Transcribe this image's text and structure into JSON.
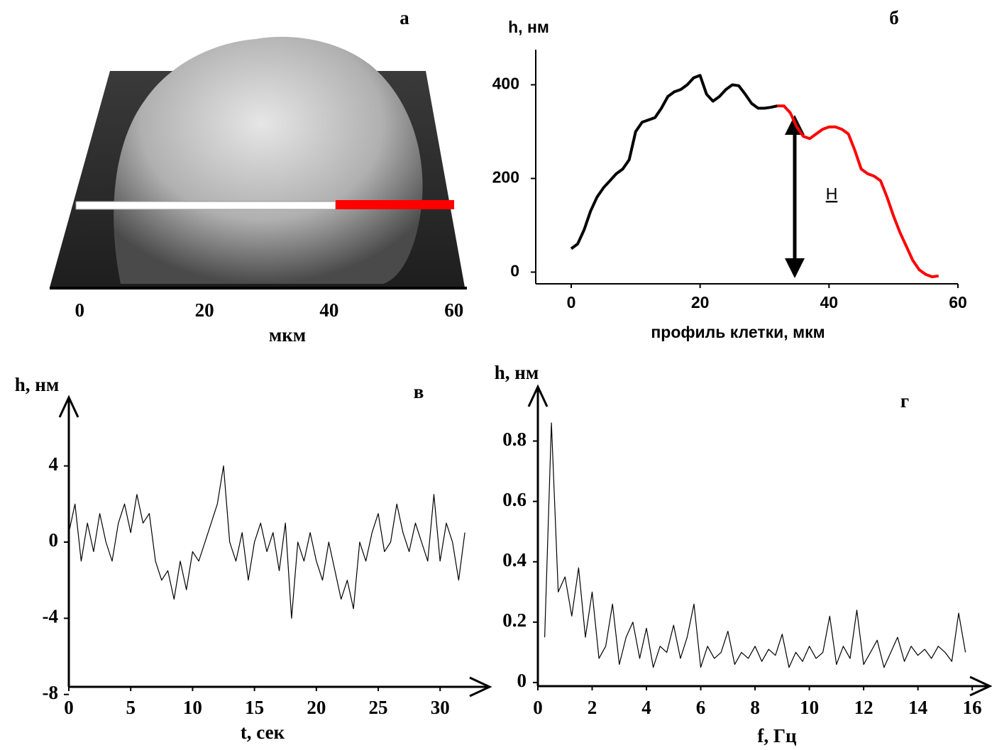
{
  "chart_data": [
    {
      "type": "image",
      "label": "а",
      "xlabel": "мкм",
      "xlim": [
        -4.8,
        62.3
      ],
      "xticks": [
        0,
        20,
        40,
        60
      ]
    },
    {
      "type": "line",
      "label": "б",
      "ylabel": "h, нм",
      "xlabel": "профиль клетки, мкм",
      "annotation": "H",
      "xlim": [
        -5.5,
        60
      ],
      "ylim": [
        -25,
        475
      ],
      "xticks": [
        0,
        20,
        40,
        60
      ],
      "yticks": [
        0,
        200,
        400
      ],
      "series": [
        {
          "color": "#000000",
          "x": [
            0,
            1,
            2,
            3,
            4,
            5,
            6,
            7,
            8,
            9,
            10,
            11,
            12,
            13,
            14,
            15,
            16,
            17,
            18,
            19,
            20,
            21,
            22,
            23,
            24,
            25,
            26,
            27,
            28,
            29,
            30,
            31,
            32
          ],
          "values": [
            50,
            60,
            90,
            130,
            160,
            180,
            195,
            210,
            220,
            240,
            300,
            320,
            325,
            330,
            350,
            375,
            385,
            390,
            400,
            415,
            420,
            380,
            365,
            375,
            390,
            400,
            398,
            380,
            360,
            350,
            350,
            352,
            355
          ]
        },
        {
          "color": "#ff0000",
          "x": [
            32,
            33,
            34,
            35,
            36,
            37,
            38,
            39,
            40,
            41,
            42,
            43,
            44,
            45,
            46,
            47,
            48,
            49,
            50,
            51,
            52,
            53,
            54,
            55,
            56,
            57
          ],
          "values": [
            355,
            355,
            340,
            310,
            290,
            285,
            295,
            305,
            310,
            310,
            305,
            295,
            260,
            220,
            210,
            205,
            195,
            160,
            120,
            85,
            55,
            25,
            5,
            -5,
            -10,
            -8
          ]
        }
      ]
    },
    {
      "type": "line",
      "label": "в",
      "ylabel": "h, нм",
      "xlabel": "t, сек",
      "xlim": [
        0,
        34
      ],
      "ylim": [
        -7.6,
        7.6
      ],
      "xticks": [
        0,
        5,
        10,
        15,
        20,
        25,
        30
      ],
      "yticks": [
        -8,
        -4,
        0,
        4
      ],
      "series": [
        {
          "color": "#000000",
          "x": [
            0,
            0.5,
            1,
            1.5,
            2,
            2.5,
            3,
            3.5,
            4,
            4.5,
            5,
            5.5,
            6,
            6.5,
            7,
            7.5,
            8,
            8.5,
            9,
            9.5,
            10,
            10.5,
            11,
            11.5,
            12,
            12.5,
            13,
            13.5,
            14,
            14.5,
            15,
            15.5,
            16,
            16.5,
            17,
            17.5,
            18,
            18.5,
            19,
            19.5,
            20,
            20.5,
            21,
            21.5,
            22,
            22.5,
            23,
            23.5,
            24,
            24.5,
            25,
            25.5,
            26,
            26.5,
            27,
            27.5,
            28,
            28.5,
            29,
            29.5,
            30,
            30.5,
            31,
            31.5,
            32
          ],
          "values": [
            0.5,
            2,
            -1,
            1,
            -0.5,
            1.5,
            0,
            -1,
            1,
            2,
            0.5,
            2.5,
            1,
            1.5,
            -1,
            -2,
            -1.5,
            -3,
            -1,
            -2.5,
            -0.5,
            -1,
            0,
            1,
            2,
            4,
            0,
            -1,
            0.5,
            -2,
            0,
            1,
            -0.5,
            0.5,
            -1.5,
            1,
            -4,
            0,
            -1,
            0.5,
            -1,
            -2,
            0,
            -1.5,
            -3,
            -2,
            -3.5,
            0,
            -1,
            0.5,
            1.5,
            -0.5,
            0,
            2,
            0.5,
            -0.5,
            1,
            0,
            -1,
            2.5,
            -1,
            1,
            0,
            -2,
            0.5
          ]
        }
      ]
    },
    {
      "type": "line",
      "label": "г",
      "ylabel": "h, нм",
      "xlabel": "f, Гц",
      "xlim": [
        0,
        16.65
      ],
      "ylim": [
        -0.012,
        0.98
      ],
      "xticks": [
        0,
        2,
        4,
        6,
        8,
        10,
        12,
        14,
        16
      ],
      "yticks": [
        0,
        0.2,
        0.4,
        0.6,
        0.8
      ],
      "series": [
        {
          "color": "#000000",
          "x": [
            0.25,
            0.5,
            0.75,
            1,
            1.25,
            1.5,
            1.75,
            2,
            2.25,
            2.5,
            2.75,
            3,
            3.25,
            3.5,
            3.75,
            4,
            4.25,
            4.5,
            4.75,
            5,
            5.25,
            5.5,
            5.75,
            6,
            6.25,
            6.5,
            6.75,
            7,
            7.25,
            7.5,
            7.75,
            8,
            8.25,
            8.5,
            8.75,
            9,
            9.25,
            9.5,
            9.75,
            10,
            10.25,
            10.5,
            10.75,
            11,
            11.25,
            11.5,
            11.75,
            12,
            12.25,
            12.5,
            12.75,
            13,
            13.25,
            13.5,
            13.75,
            14,
            14.25,
            14.5,
            14.75,
            15,
            15.25,
            15.5,
            15.75
          ],
          "values": [
            0.15,
            0.86,
            0.3,
            0.35,
            0.22,
            0.38,
            0.15,
            0.3,
            0.08,
            0.12,
            0.26,
            0.06,
            0.15,
            0.2,
            0.08,
            0.18,
            0.05,
            0.12,
            0.1,
            0.19,
            0.08,
            0.15,
            0.26,
            0.05,
            0.12,
            0.08,
            0.1,
            0.17,
            0.06,
            0.1,
            0.08,
            0.12,
            0.07,
            0.11,
            0.09,
            0.16,
            0.05,
            0.1,
            0.07,
            0.12,
            0.08,
            0.1,
            0.22,
            0.06,
            0.12,
            0.08,
            0.24,
            0.06,
            0.1,
            0.14,
            0.05,
            0.1,
            0.15,
            0.07,
            0.12,
            0.09,
            0.11,
            0.08,
            0.12,
            0.1,
            0.07,
            0.23,
            0.1
          ]
        }
      ]
    }
  ]
}
